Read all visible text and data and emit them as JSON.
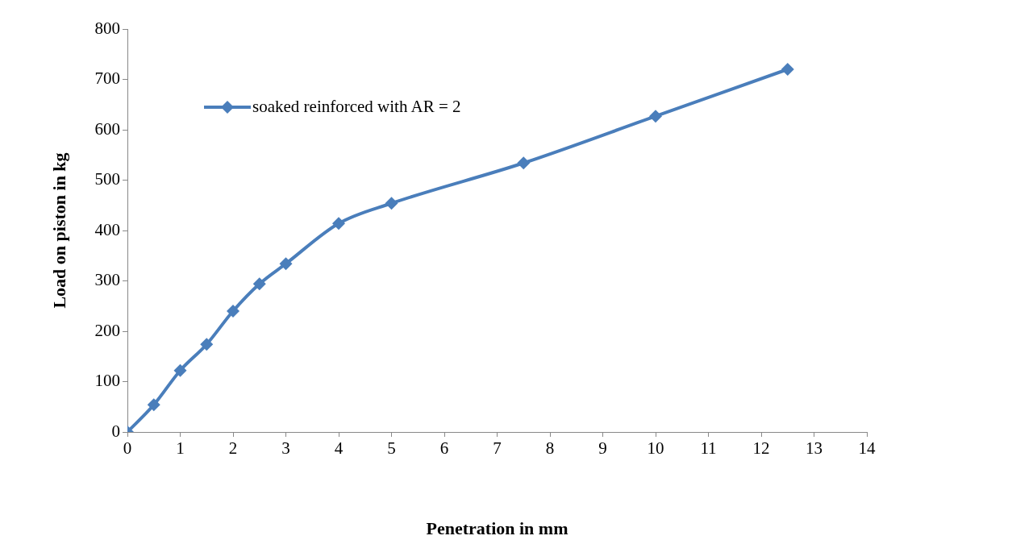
{
  "chart_data": {
    "type": "line",
    "xlabel": "Penetration in mm",
    "ylabel": "Load on piston in kg",
    "x": [
      0,
      0.5,
      1,
      1.5,
      2,
      2.5,
      3,
      4,
      5,
      7.5,
      10,
      12.5
    ],
    "series": [
      {
        "name": "soaked reinforced with AR = 2",
        "color": "#4a7ebb",
        "values": [
          0,
          54,
          122,
          174,
          240,
          294,
          334,
          414,
          454,
          534,
          627,
          720
        ]
      }
    ],
    "xlim": [
      0,
      14
    ],
    "xticks": [
      0,
      1,
      2,
      3,
      4,
      5,
      6,
      7,
      8,
      9,
      10,
      11,
      12,
      13,
      14
    ],
    "ylim": [
      0,
      800
    ],
    "yticks": [
      0,
      100,
      200,
      300,
      400,
      500,
      600,
      700,
      800
    ],
    "grid": false,
    "legend": "top left",
    "marker": "diamond",
    "line_style": "solid"
  }
}
